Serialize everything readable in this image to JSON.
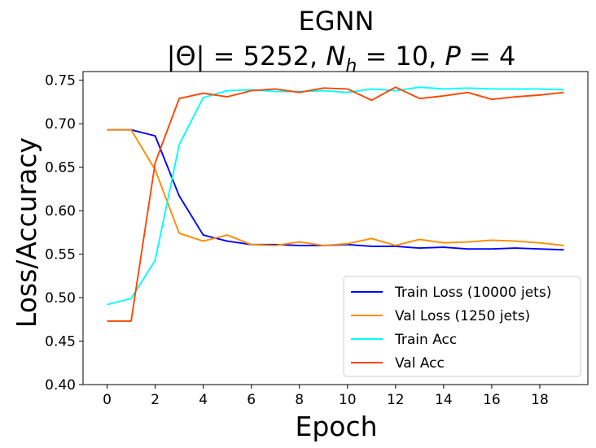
{
  "chart_data": {
    "type": "line",
    "title": "EGNN",
    "subtitle": "|Θ| = 5252,  N_h = 10,  P = 4",
    "xlabel": "Epoch",
    "ylabel": "Loss/Accuracy",
    "xlim": [
      -1,
      20
    ],
    "ylim": [
      0.4,
      0.76
    ],
    "xticks": [
      "0",
      "2",
      "4",
      "6",
      "8",
      "10",
      "12",
      "14",
      "16",
      "18"
    ],
    "yticks": [
      "0.40",
      "0.45",
      "0.50",
      "0.55",
      "0.60",
      "0.65",
      "0.70",
      "0.75"
    ],
    "grid": false,
    "legend_position": "lower-right",
    "x": [
      0,
      1,
      2,
      3,
      4,
      5,
      6,
      7,
      8,
      9,
      10,
      11,
      12,
      13,
      14,
      15,
      16,
      17,
      18,
      19
    ],
    "series": [
      {
        "name": "Train Loss (10000 jets)",
        "color": "#0000ff",
        "values": [
          0.693,
          0.693,
          0.686,
          0.617,
          0.572,
          0.565,
          0.561,
          0.561,
          0.56,
          0.56,
          0.561,
          0.559,
          0.559,
          0.557,
          0.558,
          0.556,
          0.556,
          0.557,
          0.556,
          0.555
        ]
      },
      {
        "name": "Val Loss (1250 jets)",
        "color": "#ff8c00",
        "values": [
          0.693,
          0.693,
          0.647,
          0.574,
          0.565,
          0.572,
          0.561,
          0.56,
          0.564,
          0.56,
          0.562,
          0.568,
          0.56,
          0.567,
          0.563,
          0.564,
          0.566,
          0.565,
          0.563,
          0.56
        ]
      },
      {
        "name": "Train Acc",
        "color": "#00ffff",
        "values": [
          0.492,
          0.499,
          0.543,
          0.676,
          0.73,
          0.738,
          0.739,
          0.737,
          0.737,
          0.738,
          0.736,
          0.74,
          0.738,
          0.742,
          0.74,
          0.741,
          0.74,
          0.74,
          0.74,
          0.739
        ]
      },
      {
        "name": "Val Acc",
        "color": "#ff4500",
        "values": [
          0.473,
          0.473,
          0.655,
          0.729,
          0.735,
          0.731,
          0.738,
          0.74,
          0.736,
          0.741,
          0.74,
          0.727,
          0.742,
          0.729,
          0.732,
          0.736,
          0.728,
          0.731,
          0.733,
          0.736
        ]
      }
    ]
  }
}
